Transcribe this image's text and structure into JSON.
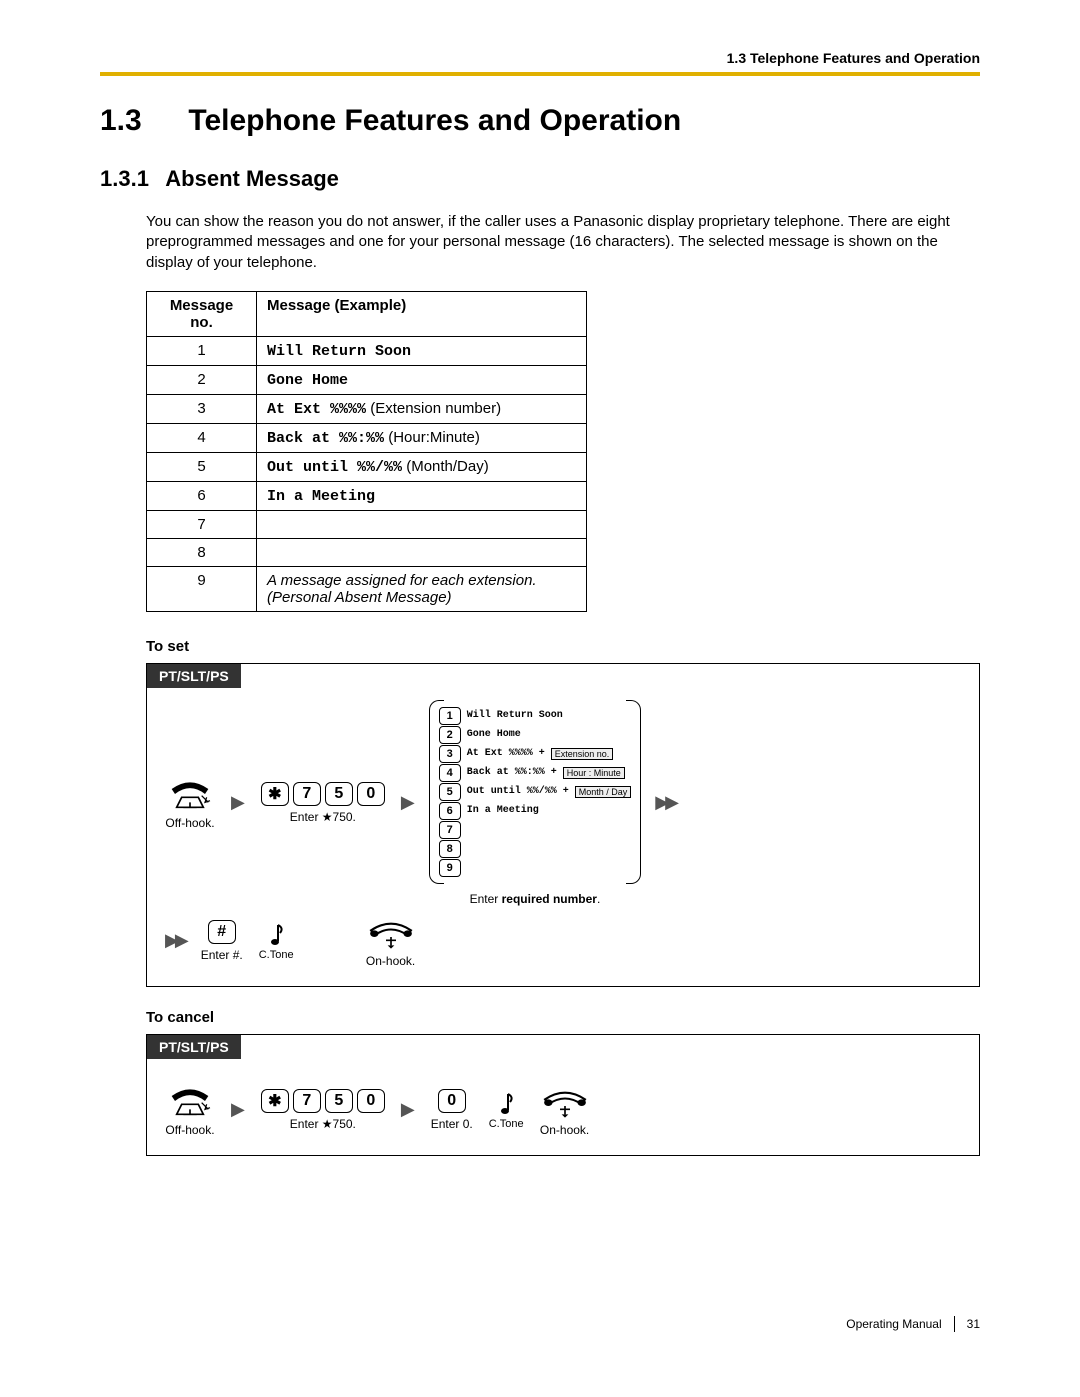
{
  "header": {
    "breadcrumb": "1.3 Telephone Features and Operation"
  },
  "section": {
    "number": "1.3",
    "title": "Telephone Features and Operation"
  },
  "subsection": {
    "number": "1.3.1",
    "title": "Absent Message"
  },
  "intro": "You can show the reason you do not answer, if the caller uses a Panasonic display proprietary telephone. There are eight preprogrammed messages and one for your personal message (16 characters). The selected message is shown on the display of your telephone.",
  "table": {
    "headers": [
      "Message no.",
      "Message (Example)"
    ],
    "rows": [
      {
        "no": "1",
        "mono": "Will Return Soon",
        "suffix": ""
      },
      {
        "no": "2",
        "mono": "Gone Home",
        "suffix": ""
      },
      {
        "no": "3",
        "mono": "At Ext %%%%",
        "suffix": " (Extension number)"
      },
      {
        "no": "4",
        "mono": "Back at %%:%%",
        "suffix": " (Hour:Minute)"
      },
      {
        "no": "5",
        "mono": "Out until %%/%%",
        "suffix": " (Month/Day)"
      },
      {
        "no": "6",
        "mono": "In a Meeting",
        "suffix": ""
      },
      {
        "no": "7",
        "mono": "",
        "suffix": ""
      },
      {
        "no": "8",
        "mono": "",
        "suffix": ""
      },
      {
        "no": "9",
        "mono": "",
        "suffix": "",
        "italic": "A message assigned for each extension. (Personal Absent Message)"
      }
    ]
  },
  "to_set": {
    "heading": "To set",
    "tab": "PT/SLT/PS",
    "offhook_caption": "Off-hook.",
    "enter750_caption": "Enter ★750.",
    "keys_750": [
      "✱",
      "7",
      "5",
      "0"
    ],
    "options": [
      {
        "k": "1",
        "t": "Will Return Soon"
      },
      {
        "k": "2",
        "t": "Gone Home"
      },
      {
        "k": "3",
        "t": "At Ext %%%% +",
        "tag": "Extension no."
      },
      {
        "k": "4",
        "t": "Back at %%:%% +",
        "tag": "Hour : Minute"
      },
      {
        "k": "5",
        "t": "Out until %%/%% +",
        "tag": "Month / Day"
      },
      {
        "k": "6",
        "t": "In a Meeting"
      },
      {
        "k": "7",
        "t": ""
      },
      {
        "k": "8",
        "t": ""
      },
      {
        "k": "9",
        "t": ""
      }
    ],
    "options_caption_prefix": "Enter ",
    "options_caption_bold": "required number",
    "options_caption_suffix": ".",
    "hash_key": "#",
    "enter_hash_caption": "Enter #.",
    "ctone": "C.Tone",
    "onhook_caption": "On-hook."
  },
  "to_cancel": {
    "heading": "To cancel",
    "tab": "PT/SLT/PS",
    "offhook_caption": "Off-hook.",
    "keys_750": [
      "✱",
      "7",
      "5",
      "0"
    ],
    "enter750_caption": "Enter ★750.",
    "zero_key": "0",
    "enter0_caption": "Enter 0.",
    "ctone": "C.Tone",
    "onhook_caption": "On-hook."
  },
  "footer": {
    "manual": "Operating Manual",
    "page": "31"
  },
  "colors": {
    "accent": "#e0b000"
  }
}
